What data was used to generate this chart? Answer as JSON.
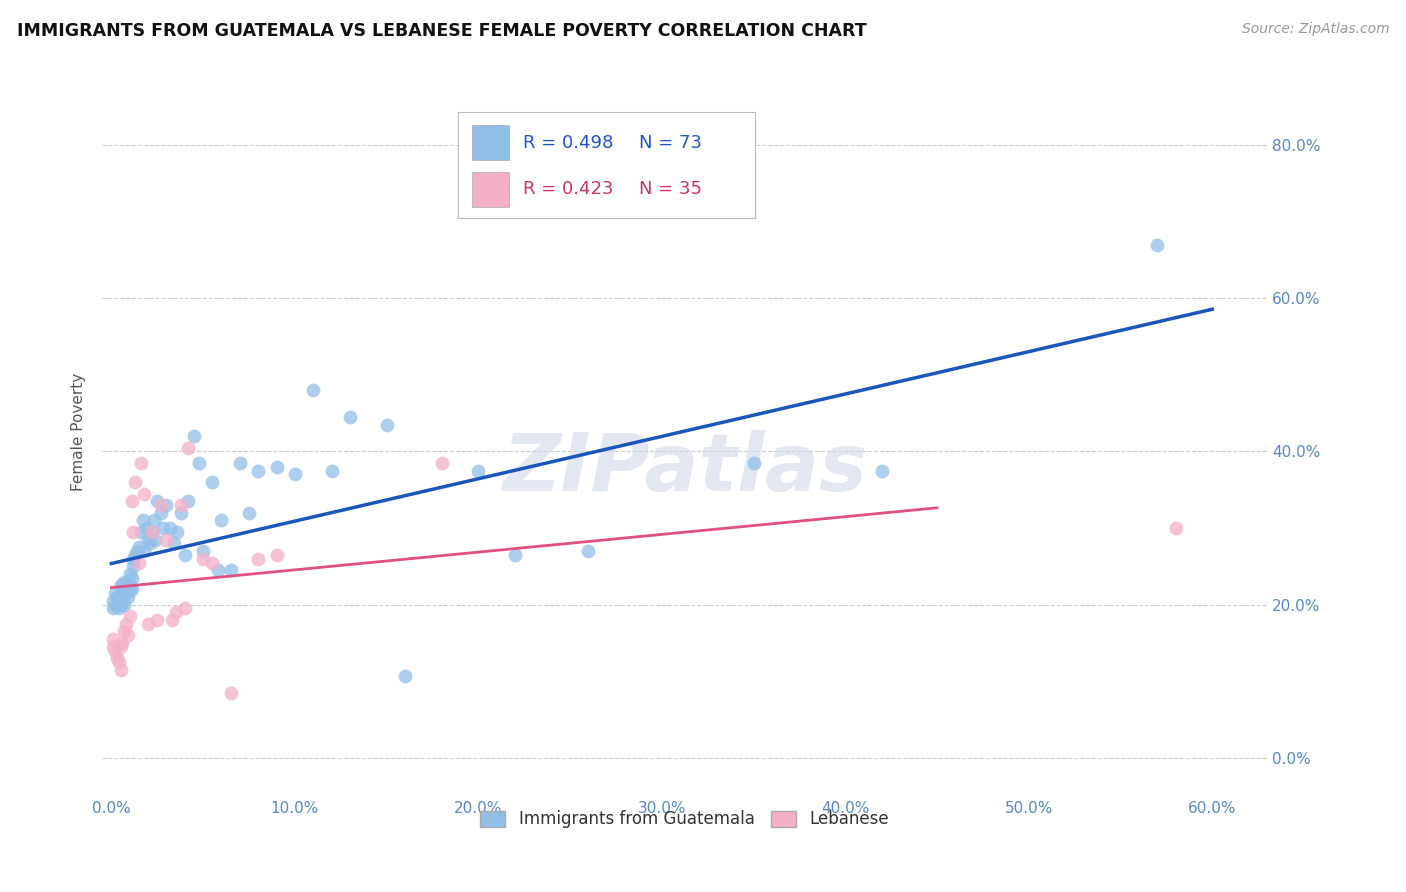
{
  "title": "IMMIGRANTS FROM GUATEMALA VS LEBANESE FEMALE POVERTY CORRELATION CHART",
  "source": "Source: ZipAtlas.com",
  "ylabel_label": "Female Poverty",
  "xlim": [
    -0.005,
    0.63
  ],
  "ylim": [
    -0.05,
    0.9
  ],
  "blue_R": 0.498,
  "blue_N": 73,
  "pink_R": 0.423,
  "pink_N": 35,
  "blue_color": "#92bfe8",
  "pink_color": "#f4afc8",
  "blue_line_color": "#1a56bb",
  "pink_line_color": "#e05080",
  "watermark": "ZIPatlas",
  "legend_label_blue": "Immigrants from Guatemala",
  "legend_label_pink": "Lebanese",
  "blue_x": [
    0.001,
    0.001,
    0.002,
    0.002,
    0.003,
    0.003,
    0.004,
    0.004,
    0.005,
    0.005,
    0.005,
    0.006,
    0.006,
    0.006,
    0.007,
    0.007,
    0.007,
    0.008,
    0.008,
    0.009,
    0.009,
    0.01,
    0.01,
    0.01,
    0.011,
    0.011,
    0.012,
    0.012,
    0.013,
    0.014,
    0.015,
    0.016,
    0.017,
    0.018,
    0.019,
    0.02,
    0.021,
    0.022,
    0.023,
    0.024,
    0.025,
    0.027,
    0.028,
    0.03,
    0.032,
    0.034,
    0.036,
    0.038,
    0.04,
    0.042,
    0.045,
    0.048,
    0.05,
    0.055,
    0.058,
    0.06,
    0.065,
    0.07,
    0.075,
    0.08,
    0.09,
    0.1,
    0.11,
    0.12,
    0.13,
    0.15,
    0.16,
    0.2,
    0.22,
    0.26,
    0.35,
    0.42,
    0.57
  ],
  "blue_y": [
    0.195,
    0.205,
    0.2,
    0.215,
    0.2,
    0.21,
    0.195,
    0.21,
    0.2,
    0.215,
    0.225,
    0.205,
    0.215,
    0.225,
    0.2,
    0.215,
    0.23,
    0.215,
    0.225,
    0.21,
    0.23,
    0.22,
    0.225,
    0.24,
    0.22,
    0.235,
    0.25,
    0.26,
    0.265,
    0.27,
    0.275,
    0.295,
    0.31,
    0.27,
    0.3,
    0.285,
    0.28,
    0.295,
    0.31,
    0.285,
    0.335,
    0.32,
    0.3,
    0.33,
    0.3,
    0.28,
    0.295,
    0.32,
    0.265,
    0.335,
    0.42,
    0.385,
    0.27,
    0.36,
    0.245,
    0.31,
    0.245,
    0.385,
    0.32,
    0.375,
    0.38,
    0.37,
    0.48,
    0.375,
    0.445,
    0.435,
    0.107,
    0.375,
    0.265,
    0.27,
    0.385,
    0.375,
    0.67
  ],
  "pink_x": [
    0.001,
    0.001,
    0.002,
    0.003,
    0.004,
    0.005,
    0.005,
    0.006,
    0.007,
    0.008,
    0.009,
    0.01,
    0.011,
    0.012,
    0.013,
    0.015,
    0.016,
    0.018,
    0.02,
    0.022,
    0.025,
    0.027,
    0.03,
    0.033,
    0.035,
    0.038,
    0.04,
    0.042,
    0.05,
    0.055,
    0.065,
    0.08,
    0.09,
    0.18,
    0.58
  ],
  "pink_y": [
    0.155,
    0.145,
    0.14,
    0.13,
    0.125,
    0.115,
    0.145,
    0.15,
    0.165,
    0.175,
    0.16,
    0.185,
    0.335,
    0.295,
    0.36,
    0.255,
    0.385,
    0.345,
    0.175,
    0.295,
    0.18,
    0.33,
    0.285,
    0.18,
    0.19,
    0.33,
    0.195,
    0.405,
    0.26,
    0.255,
    0.085,
    0.26,
    0.265,
    0.385,
    0.3
  ]
}
